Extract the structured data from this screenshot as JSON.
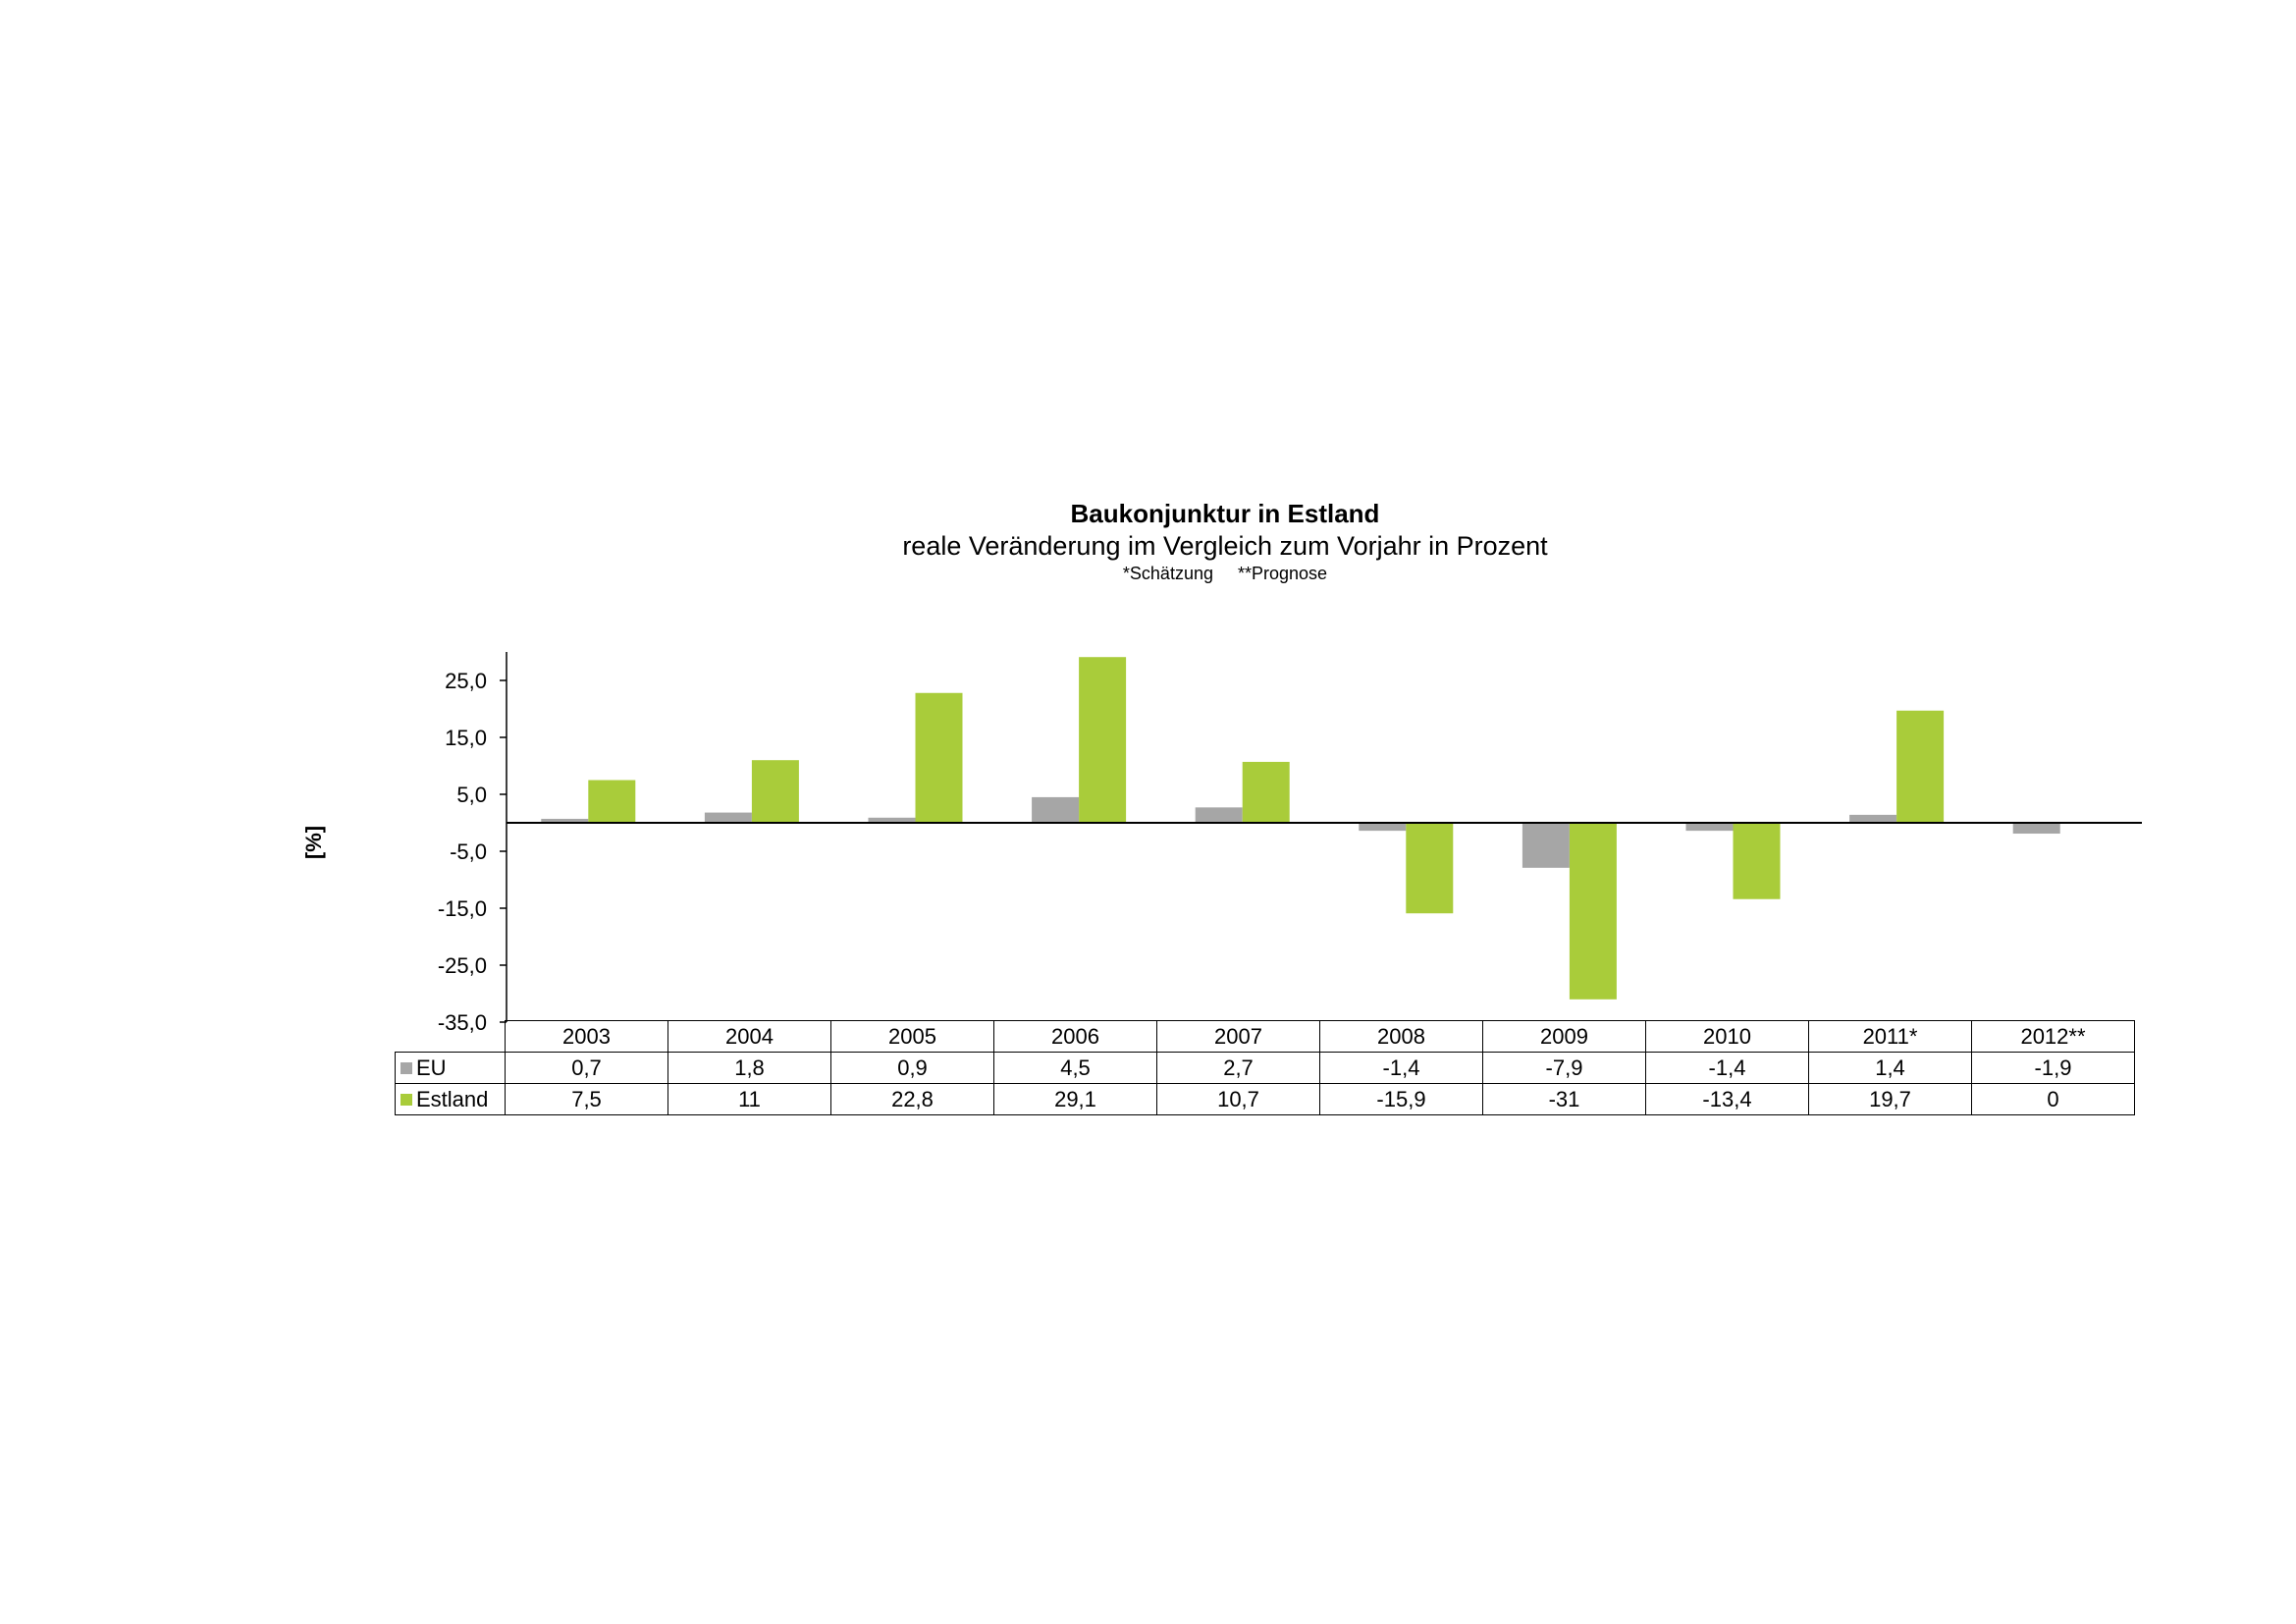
{
  "chart_data": {
    "type": "bar",
    "title": "Baukonjunktur in Estland",
    "subtitle": "reale Veränderung im Vergleich zum Vorjahr in Prozent",
    "notes": [
      "*Schätzung",
      "**Prognose"
    ],
    "ylabel": "[%]",
    "ylim": [
      -35,
      30
    ],
    "yticks": [
      25,
      15,
      5,
      -5,
      -15,
      -25,
      -35
    ],
    "ytick_labels": [
      "25,0",
      "15,0",
      "5,0",
      "-5,0",
      "-15,0",
      "-25,0",
      "-35,0"
    ],
    "categories": [
      "2003",
      "2004",
      "2005",
      "2006",
      "2007",
      "2008",
      "2009",
      "2010",
      "2011*",
      "2012**"
    ],
    "series": [
      {
        "name": "EU",
        "color": "#a6a6a6",
        "values": [
          0.7,
          1.8,
          0.9,
          4.5,
          2.7,
          -1.4,
          -7.9,
          -1.4,
          1.4,
          -1.9
        ],
        "labels": [
          "0,7",
          "1,8",
          "0,9",
          "4,5",
          "2,7",
          "-1,4",
          "-7,9",
          "-1,4",
          "1,4",
          "-1,9"
        ]
      },
      {
        "name": "Estland",
        "color": "#a9cc3a",
        "values": [
          7.5,
          11,
          22.8,
          29.1,
          10.7,
          -15.9,
          -31,
          -13.4,
          19.7,
          0
        ],
        "labels": [
          "7,5",
          "11",
          "22,8",
          "29,1",
          "10,7",
          "-15,9",
          "-31",
          "-13,4",
          "19,7",
          "0"
        ]
      }
    ],
    "grid": false,
    "legend": "data-table"
  }
}
